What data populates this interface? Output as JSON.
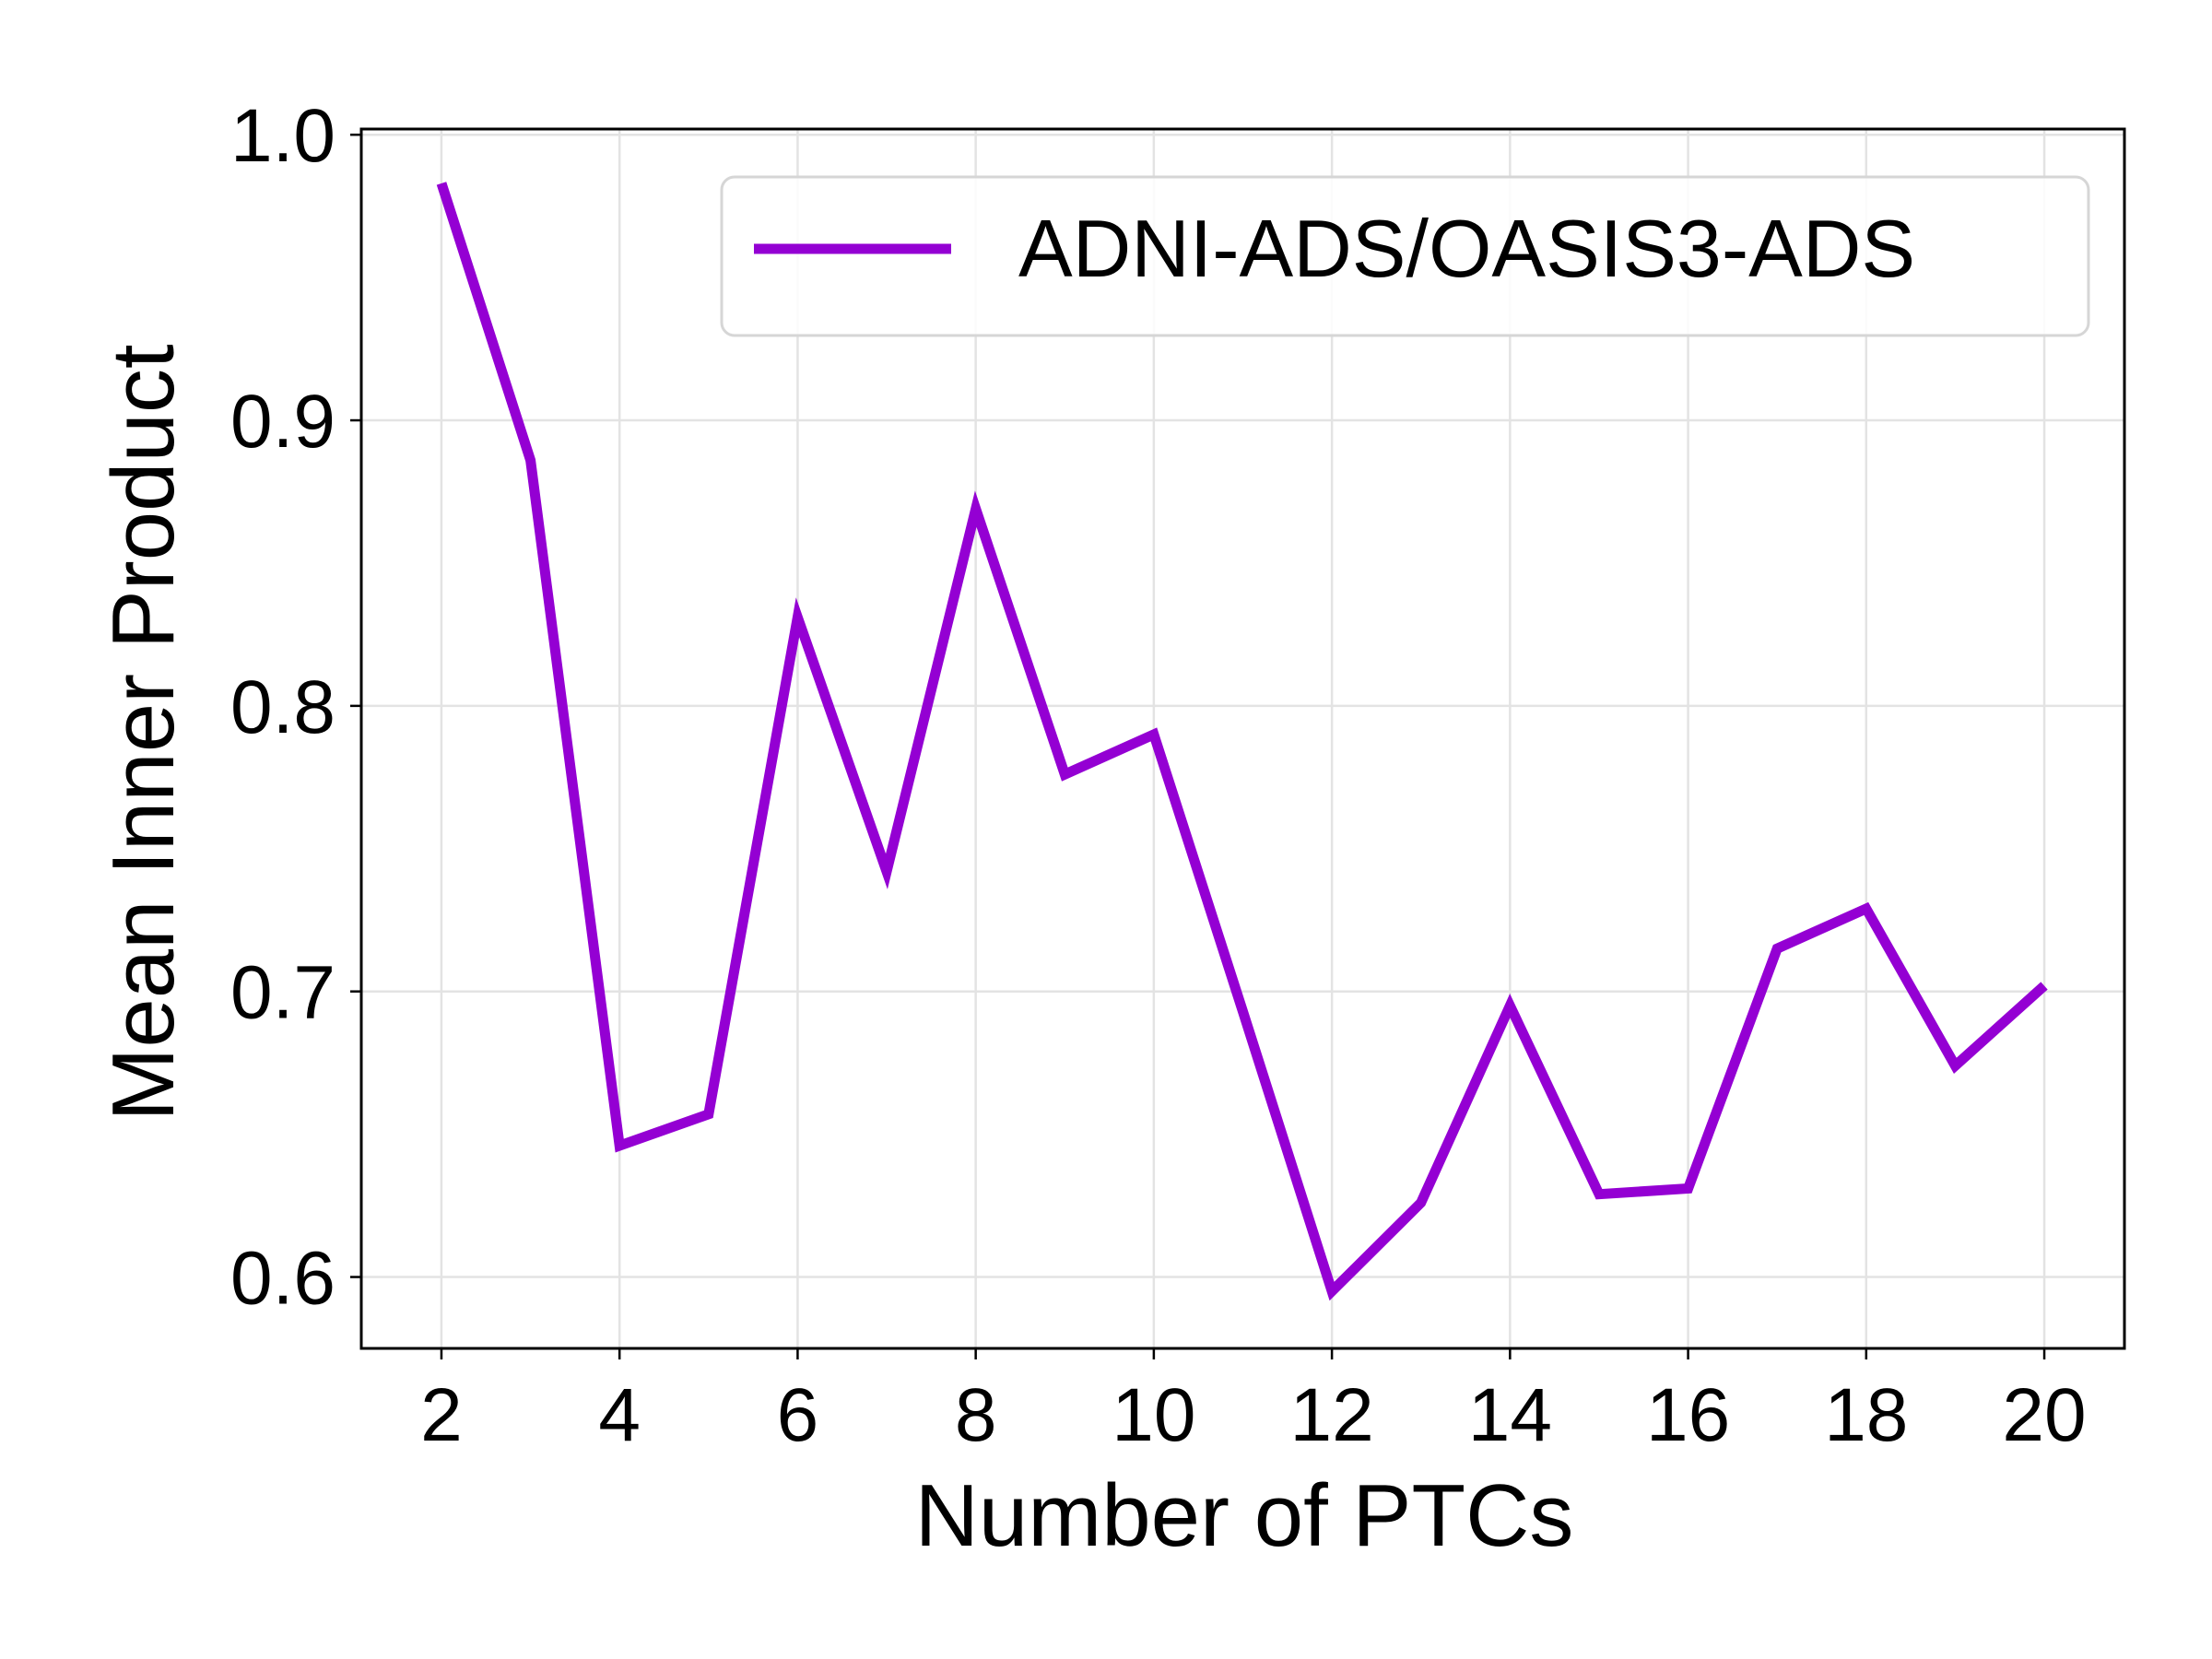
{
  "chart_data": {
    "type": "line",
    "title": "",
    "xlabel": "Number of PTCs",
    "ylabel": "Mean Inner Product",
    "xlim": [
      1.1,
      20.9
    ],
    "ylim": [
      0.575,
      1.002
    ],
    "xticks": [
      2,
      4,
      6,
      8,
      10,
      12,
      14,
      16,
      18,
      20
    ],
    "xtick_labels": [
      "2",
      "4",
      "6",
      "8",
      "10",
      "12",
      "14",
      "16",
      "18",
      "20"
    ],
    "yticks": [
      0.6,
      0.7,
      0.8,
      0.9,
      1.0
    ],
    "ytick_labels": [
      "0.6",
      "0.7",
      "0.8",
      "0.9",
      "1.0"
    ],
    "grid": true,
    "legend_position": "top-right",
    "series": [
      {
        "name": "ADNI-ADS/OASIS3-ADS",
        "color": "#9400d3",
        "x": [
          2,
          3,
          4,
          5,
          6,
          7,
          8,
          9,
          10,
          11,
          12,
          13,
          14,
          15,
          16,
          17,
          18,
          19,
          20
        ],
        "y": [
          0.983,
          0.886,
          0.646,
          0.657,
          0.831,
          0.742,
          0.869,
          0.776,
          0.79,
          0.693,
          0.595,
          0.626,
          0.695,
          0.629,
          0.631,
          0.715,
          0.729,
          0.674,
          0.702
        ]
      }
    ]
  }
}
